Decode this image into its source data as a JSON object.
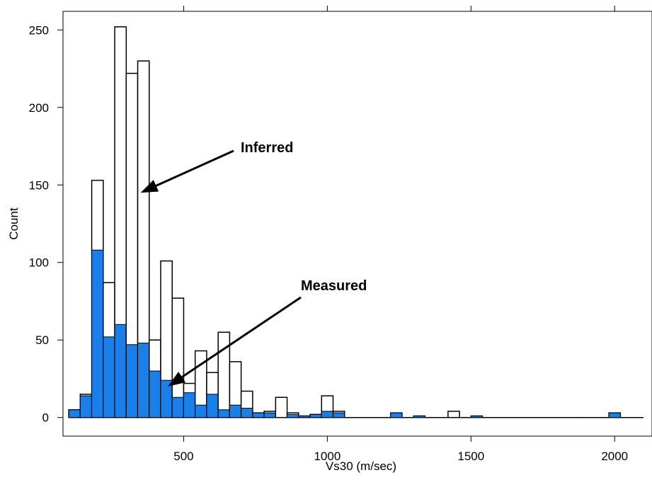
{
  "chart_data": {
    "type": "bar",
    "subtype": "stacked histogram",
    "xlabel": "Vs30 (m/sec)",
    "ylabel": "Count",
    "xlim": [
      80,
      2130
    ],
    "ylim": [
      -12,
      262
    ],
    "x_ticks": [
      500,
      1000,
      1500,
      2000
    ],
    "y_ticks": [
      0,
      50,
      100,
      150,
      200,
      250
    ],
    "bin_width": 40,
    "bin_starts": [
      100,
      140,
      180,
      220,
      260,
      300,
      340,
      380,
      420,
      460,
      500,
      540,
      580,
      620,
      660,
      700,
      740,
      780,
      820,
      860,
      900,
      940,
      980,
      1020,
      1060,
      1100,
      1140,
      1180,
      1220,
      1260,
      1300,
      1340,
      1380,
      1420,
      1460,
      1500,
      1540,
      1580,
      1620,
      1660,
      1700,
      1740,
      1780,
      1820,
      1860,
      1900,
      1940,
      1980,
      2020,
      2060
    ],
    "series": [
      {
        "name": "Measured",
        "color": "#1a7fe8",
        "values": [
          5,
          14,
          108,
          52,
          60,
          47,
          48,
          30,
          24,
          13,
          16,
          8,
          15,
          5,
          8,
          6,
          3,
          3,
          0,
          2,
          1,
          2,
          4,
          3,
          0,
          0,
          0,
          0,
          3,
          0,
          1,
          0,
          0,
          0,
          0,
          1,
          0,
          0,
          0,
          0,
          0,
          0,
          0,
          0,
          0,
          0,
          0,
          3,
          0,
          0
        ]
      },
      {
        "name": "Inferred",
        "color": "#ffffff",
        "values": [
          0,
          1,
          45,
          35,
          192,
          175,
          182,
          20,
          77,
          64,
          6,
          35,
          14,
          50,
          28,
          11,
          0,
          1,
          13,
          1,
          0,
          0,
          10,
          1,
          0,
          0,
          0,
          0,
          0,
          0,
          0,
          0,
          0,
          4,
          0,
          0,
          0,
          0,
          0,
          0,
          0,
          0,
          0,
          0,
          0,
          0,
          0,
          0,
          0,
          0
        ]
      }
    ],
    "annotations": [
      {
        "id": "inferred",
        "text": "Inferred",
        "arrow_to_x": 350,
        "arrow_to_y": 145
      },
      {
        "id": "measured",
        "text": "Measured",
        "arrow_to_x": 445,
        "arrow_to_y": 20
      }
    ]
  }
}
